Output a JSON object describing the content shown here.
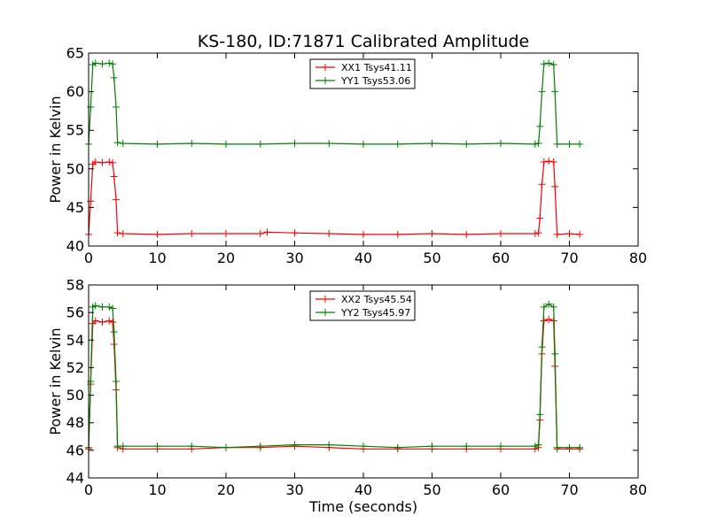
{
  "figure": {
    "title": "KS-180, ID:71871 Calibrated Amplitude",
    "xlabel": "Time (seconds)"
  },
  "chart_data": [
    {
      "type": "line",
      "title": "KS-180, ID:71871 Calibrated Amplitude",
      "xlabel": "",
      "ylabel": "Power in Kelvin",
      "xlim": [
        0,
        80
      ],
      "ylim": [
        40,
        65
      ],
      "xticks": [
        0,
        10,
        20,
        30,
        40,
        50,
        60,
        70,
        80
      ],
      "yticks": [
        40,
        45,
        50,
        55,
        60,
        65
      ],
      "grid": false,
      "legend": "top-center",
      "series": [
        {
          "name": "XX1 Tsys41.11",
          "color": "#ff0000",
          "marker": "plus",
          "x": [
            0.0,
            0.3,
            0.6,
            1,
            2,
            3,
            3.5,
            3.7,
            4.0,
            4.2,
            5,
            10,
            15,
            20,
            25,
            26,
            30,
            35,
            40,
            45,
            50,
            55,
            60,
            65,
            65.5,
            65.7,
            66.0,
            66.3,
            67,
            67.7,
            67.9,
            68.2,
            70,
            71.5
          ],
          "y": [
            41.5,
            45.8,
            50.6,
            50.9,
            50.8,
            50.9,
            50.8,
            49.0,
            46.0,
            41.7,
            41.6,
            41.5,
            41.6,
            41.6,
            41.6,
            41.8,
            41.7,
            41.6,
            41.5,
            41.5,
            41.6,
            41.5,
            41.6,
            41.6,
            41.7,
            43.6,
            48.0,
            50.9,
            51.0,
            50.9,
            47.7,
            41.5,
            41.6,
            41.5
          ]
        },
        {
          "name": "YY1 Tsys53.06",
          "color": "#008000",
          "marker": "plus",
          "x": [
            0.0,
            0.3,
            0.6,
            1,
            2,
            3,
            3.5,
            3.7,
            4.0,
            4.2,
            5,
            10,
            15,
            20,
            25,
            30,
            35,
            40,
            45,
            50,
            55,
            60,
            65,
            65.5,
            65.7,
            66.0,
            66.3,
            67,
            67.7,
            67.9,
            68.2,
            70,
            71.5
          ],
          "y": [
            53.2,
            58.0,
            63.5,
            63.7,
            63.6,
            63.7,
            63.6,
            61.8,
            58.0,
            53.4,
            53.3,
            53.2,
            53.3,
            53.2,
            53.2,
            53.3,
            53.3,
            53.2,
            53.2,
            53.3,
            53.2,
            53.3,
            53.2,
            53.3,
            55.5,
            60.0,
            63.6,
            63.7,
            63.5,
            60.0,
            53.2,
            53.2,
            53.2
          ]
        }
      ]
    },
    {
      "type": "line",
      "title": "",
      "xlabel": "Time (seconds)",
      "ylabel": "Power in Kelvin",
      "xlim": [
        0,
        80
      ],
      "ylim": [
        44,
        58
      ],
      "xticks": [
        0,
        10,
        20,
        30,
        40,
        50,
        60,
        70,
        80
      ],
      "yticks": [
        44,
        46,
        48,
        50,
        52,
        54,
        56,
        58
      ],
      "grid": false,
      "legend": "top-center",
      "series": [
        {
          "name": "XX2 Tsys45.54",
          "color": "#ff0000",
          "marker": "plus",
          "x": [
            0.0,
            0.3,
            0.6,
            1,
            2,
            3,
            3.5,
            3.7,
            4.0,
            4.2,
            5,
            10,
            15,
            20,
            25,
            30,
            35,
            40,
            45,
            50,
            55,
            60,
            65,
            65.5,
            65.7,
            66.0,
            66.3,
            67,
            67.7,
            67.9,
            68.2,
            70,
            71.5
          ],
          "y": [
            46.1,
            50.8,
            55.2,
            55.4,
            55.3,
            55.4,
            55.3,
            53.7,
            50.4,
            46.2,
            46.1,
            46.1,
            46.1,
            46.2,
            46.2,
            46.3,
            46.2,
            46.1,
            46.1,
            46.1,
            46.1,
            46.1,
            46.1,
            46.2,
            48.2,
            53.0,
            55.4,
            55.5,
            55.4,
            52.1,
            46.1,
            46.1,
            46.1
          ]
        },
        {
          "name": "YY2 Tsys45.97",
          "color": "#008000",
          "marker": "plus",
          "x": [
            0.0,
            0.3,
            0.6,
            1,
            2,
            3,
            3.5,
            3.7,
            4.0,
            4.2,
            5,
            10,
            15,
            20,
            25,
            30,
            35,
            40,
            45,
            50,
            55,
            60,
            65,
            65.5,
            65.7,
            66.0,
            66.3,
            67,
            67.7,
            67.9,
            68.2,
            70,
            71.5
          ],
          "y": [
            46.2,
            51.0,
            56.4,
            56.5,
            56.4,
            56.4,
            56.3,
            54.6,
            51.0,
            46.3,
            46.3,
            46.3,
            46.3,
            46.2,
            46.3,
            46.4,
            46.4,
            46.3,
            46.2,
            46.3,
            46.3,
            46.3,
            46.3,
            46.4,
            48.6,
            53.5,
            56.4,
            56.6,
            56.4,
            53.0,
            46.2,
            46.2,
            46.2
          ]
        }
      ]
    }
  ]
}
